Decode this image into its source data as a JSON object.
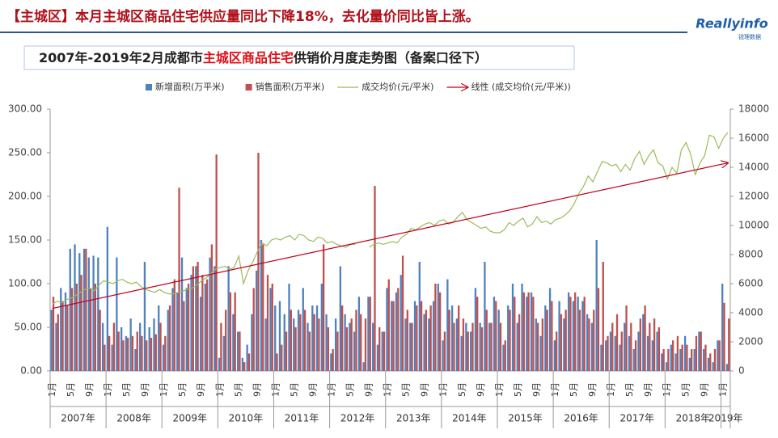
{
  "header": {
    "title": "【主城区】本月主城区商品住宅供应量同比下降18%，去化量价同比皆上涨。",
    "logo": "Reallyinfo",
    "logo_sub": "锐理数据"
  },
  "chart_data": {
    "type": "bar-line",
    "title_parts": [
      "2007年-2019年2月成都市",
      "主城区商品住宅",
      "供销价月度走势图（备案口径下）"
    ],
    "categories": [
      "1月",
      null,
      null,
      null,
      "5月",
      null,
      null,
      null,
      "9月",
      null,
      null,
      null,
      "1月",
      null,
      null,
      null,
      "5月",
      null,
      null,
      null,
      "9月",
      null,
      null,
      null,
      "1月",
      null,
      null,
      null,
      "5月",
      null,
      null,
      null,
      "9月",
      null,
      null,
      null,
      "1月",
      null,
      null,
      null,
      "5月",
      null,
      null,
      null,
      "9月",
      null,
      null,
      null,
      "1月",
      null,
      null,
      null,
      "5月",
      null,
      null,
      null,
      "9月",
      null,
      null,
      null,
      "1月",
      null,
      null,
      null,
      "5月",
      null,
      null,
      null,
      "9月",
      null,
      null,
      null,
      "1月",
      null,
      null,
      null,
      "5月",
      null,
      null,
      null,
      "9月",
      null,
      null,
      null,
      "1月",
      null,
      null,
      null,
      "5月",
      null,
      null,
      null,
      "9月",
      null,
      null,
      null,
      "1月",
      null,
      null,
      null,
      "5月",
      null,
      null,
      null,
      "9月",
      null,
      null,
      null,
      "1月",
      null,
      null,
      null,
      "5月",
      null,
      null,
      null,
      "9月",
      null,
      null,
      null,
      "1月",
      null,
      null,
      null,
      "5月",
      null,
      null,
      null,
      "9月",
      null,
      null,
      null,
      "1月",
      null,
      null,
      null,
      "5月",
      null,
      null,
      null,
      "9月",
      null,
      null,
      null,
      "1月",
      null
    ],
    "year_labels": [
      "2007年",
      "2008年",
      "2009年",
      "2010年",
      "2011年",
      "2012年",
      "2013年",
      "2014年",
      "2015年",
      "2016年",
      "2017年",
      "2018年",
      "2019年"
    ],
    "series": [
      {
        "name": "新增面积(万平米)",
        "kind": "bar",
        "color": "#4f81bd",
        "values": [
          70,
          55,
          95,
          90,
          140,
          145,
          135,
          140,
          130,
          132,
          130,
          55,
          165,
          30,
          130,
          50,
          40,
          60,
          25,
          55,
          125,
          50,
          60,
          75,
          30,
          70,
          95,
          90,
          130,
          95,
          110,
          120,
          85,
          100,
          130,
          120,
          15,
          40,
          120,
          65,
          45,
          15,
          30,
          65,
          115,
          150,
          60,
          95,
          75,
          80,
          65,
          100,
          60,
          70,
          95,
          55,
          75,
          75,
          100,
          65,
          20,
          60,
          120,
          65,
          55,
          45,
          85,
          10,
          85,
          55,
          30,
          45,
          95,
          80,
          90,
          110,
          60,
          55,
          80,
          125,
          65,
          60,
          80,
          100,
          35,
          105,
          75,
          60,
          40,
          55,
          45,
          95,
          55,
          125,
          55,
          85,
          70,
          30,
          75,
          100,
          55,
          100,
          85,
          90,
          60,
          40,
          75,
          95,
          35,
          80,
          60,
          90,
          80,
          85,
          80,
          65,
          55,
          150,
          30,
          35,
          45,
          40,
          30,
          55,
          40,
          25,
          45,
          65,
          40,
          35,
          45,
          20,
          10,
          30,
          20,
          25,
          40,
          15,
          25,
          45,
          25,
          15,
          10,
          35,
          100,
          8
        ]
      },
      {
        "name": "销售面积(万平米)",
        "kind": "bar",
        "color": "#c0504d",
        "values": [
          85,
          65,
          80,
          75,
          95,
          100,
          110,
          140,
          95,
          100,
          70,
          30,
          40,
          55,
          45,
          35,
          38,
          40,
          45,
          40,
          35,
          38,
          42,
          55,
          40,
          75,
          105,
          210,
          80,
          100,
          120,
          125,
          110,
          105,
          145,
          248,
          55,
          70,
          90,
          90,
          45,
          10,
          20,
          95,
          250,
          145,
          110,
          100,
          20,
          30,
          45,
          70,
          50,
          65,
          70,
          45,
          65,
          60,
          145,
          50,
          25,
          45,
          75,
          50,
          60,
          70,
          65,
          60,
          85,
          212,
          50,
          45,
          105,
          80,
          95,
          132,
          70,
          55,
          75,
          80,
          70,
          75,
          100,
          90,
          45,
          70,
          55,
          75,
          60,
          45,
          55,
          85,
          50,
          70,
          55,
          80,
          55,
          35,
          70,
          85,
          65,
          90,
          90,
          85,
          55,
          60,
          70,
          80,
          45,
          65,
          70,
          85,
          90,
          70,
          85,
          60,
          70,
          95,
          125,
          40,
          55,
          65,
          45,
          75,
          55,
          35,
          60,
          75,
          55,
          60,
          50,
          25,
          25,
          35,
          40,
          30,
          30,
          25,
          40,
          45,
          30,
          20,
          25,
          35,
          78,
          60
        ]
      },
      {
        "name": "成交均价(元/平米)",
        "kind": "line",
        "axis": "y2",
        "color": "#9bbb59",
        "values": [
          4600,
          4800,
          4700,
          4900,
          5000,
          5200,
          5400,
          5600,
          5700,
          5500,
          5900,
          6200,
          6100,
          6000,
          6200,
          6300,
          6100,
          6000,
          6100,
          5800,
          5600,
          5500,
          5400,
          5600,
          5400,
          5300,
          5300,
          5400,
          5500,
          5600,
          5700,
          5900,
          6200,
          6400,
          6700,
          7000,
          7100,
          7200,
          7000,
          7100,
          7900,
          6000,
          6900,
          7500,
          8200,
          8800,
          8600,
          9000,
          9100,
          9000,
          9200,
          9300,
          9000,
          9400,
          9300,
          9000,
          8900,
          9200,
          9100,
          8800,
          8900,
          8700,
          8600,
          8500,
          8700,
          8700,
          null,
          null,
          8500,
          8700,
          8800,
          8700,
          8800,
          8900,
          8800,
          9200,
          9400,
          9800,
          9700,
          9900,
          10100,
          10200,
          10000,
          10300,
          10400,
          10100,
          10200,
          10600,
          10900,
          10400,
          10200,
          10000,
          9800,
          9900,
          9600,
          9500,
          9500,
          9700,
          10200,
          10000,
          10300,
          10500,
          9900,
          10100,
          10600,
          10200,
          10300,
          10100,
          10400,
          10500,
          10700,
          11000,
          11500,
          12200,
          12700,
          13400,
          13000,
          13700,
          14400,
          14300,
          14100,
          14200,
          13700,
          14200,
          13800,
          14600,
          15100,
          14200,
          14800,
          15200,
          14300,
          14100,
          13200,
          14000,
          13600,
          15200,
          15700,
          14900,
          13500,
          14300,
          14800,
          16200,
          16100,
          15300,
          16000,
          16400
        ]
      }
    ],
    "trendline": {
      "name": "线性 (成交均价(元/平米))",
      "color": "#c0001a",
      "values": [
        4300,
        14300
      ]
    },
    "ylim": [
      0,
      300
    ],
    "yticks": [
      {
        "value": 0,
        "label": "0.00"
      },
      {
        "value": 50,
        "label": "50.00"
      },
      {
        "value": 100,
        "label": "100.00"
      },
      {
        "value": 150,
        "label": "150.00"
      },
      {
        "value": 200,
        "label": "200.00"
      },
      {
        "value": 250,
        "label": "250.00"
      },
      {
        "value": 300,
        "label": "300.00"
      }
    ],
    "y2lim": [
      0,
      18000
    ],
    "y2ticks": [
      0,
      2000,
      4000,
      6000,
      8000,
      10000,
      12000,
      14000,
      16000,
      18000
    ]
  }
}
